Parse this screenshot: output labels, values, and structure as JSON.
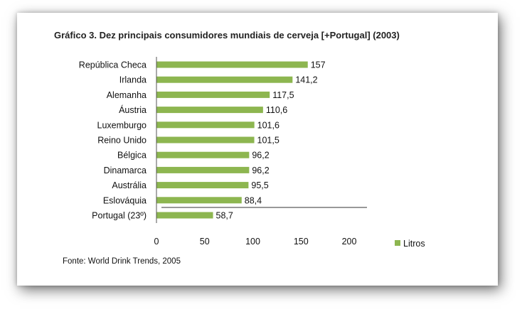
{
  "chart_data": {
    "type": "bar",
    "orientation": "horizontal",
    "title": "Gráfico 3.  Dez principais consumidores mundiais de cerveja [+Portugal] (2003)",
    "categories": [
      "República Checa",
      "Irlanda",
      "Alemanha",
      "Áustria",
      "Luxemburgo",
      "Reino Unido",
      "Bélgica",
      "Dinamarca",
      "Austrália",
      "Eslováquia",
      "Portugal (23º)"
    ],
    "value_labels": [
      "157",
      "141,2",
      "117,5",
      "110,6",
      "101,6",
      "101,5",
      "96,2",
      "96,2",
      "95,5",
      "88,4",
      "58,7"
    ],
    "series": [
      {
        "name": "Litros",
        "values": [
          157,
          141.2,
          117.5,
          110.6,
          101.6,
          101.5,
          96.2,
          96.2,
          95.5,
          88.4,
          58.7
        ]
      }
    ],
    "xlim": [
      0,
      200
    ],
    "xticks": [
      "0",
      "50",
      "100",
      "150",
      "200"
    ],
    "grid": false,
    "legend_position": "right",
    "bar_color": "#8db650",
    "source": "Fonte: World Drink Trends, 2005"
  }
}
